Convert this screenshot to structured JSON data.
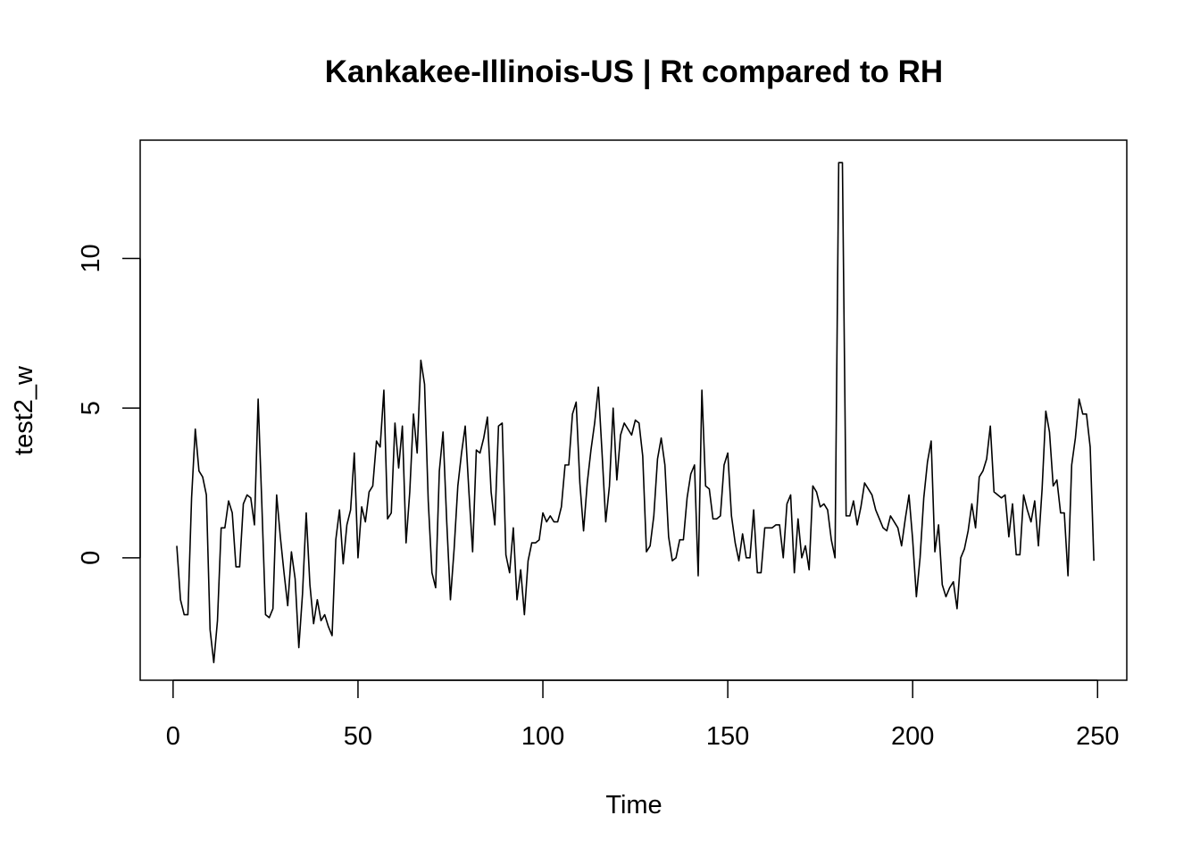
{
  "chart_data": {
    "type": "line",
    "title": "Kankakee-Illinois-US | Rt compared to RH",
    "xlabel": "Time",
    "ylabel": "test2_w",
    "xlim": [
      -8.9,
      257.9
    ],
    "ylim": [
      -4.09,
      13.95
    ],
    "x_ticks": [
      0,
      50,
      100,
      150,
      200,
      250
    ],
    "y_ticks": [
      0,
      5,
      10
    ],
    "grid": false,
    "legend": "none",
    "line_color": "#000000",
    "x_start": 1,
    "values": [
      0.4,
      -1.4,
      -1.9,
      -1.9,
      2.0,
      4.3,
      2.9,
      2.7,
      2.1,
      -2.4,
      -3.5,
      -2.1,
      1.0,
      1.0,
      1.9,
      1.5,
      -0.3,
      -0.3,
      1.8,
      2.1,
      2.0,
      1.1,
      5.3,
      1.8,
      -1.9,
      -2.0,
      -1.7,
      2.1,
      0.7,
      -0.5,
      -1.6,
      0.2,
      -0.7,
      -3.0,
      -1.2,
      1.5,
      -0.9,
      -2.2,
      -1.4,
      -2.1,
      -1.9,
      -2.3,
      -2.6,
      0.6,
      1.6,
      -0.2,
      1.1,
      1.6,
      3.5,
      0.0,
      1.7,
      1.2,
      2.2,
      2.4,
      3.9,
      3.7,
      5.6,
      1.3,
      1.5,
      4.5,
      3.0,
      4.4,
      0.5,
      2.2,
      4.8,
      3.5,
      6.6,
      5.8,
      1.9,
      -0.5,
      -1.0,
      2.9,
      4.2,
      1.2,
      -1.4,
      0.3,
      2.4,
      3.5,
      4.4,
      2.2,
      0.2,
      3.6,
      3.5,
      4.0,
      4.7,
      2.2,
      1.1,
      4.4,
      4.5,
      0.1,
      -0.5,
      1.0,
      -1.4,
      -0.4,
      -1.9,
      -0.1,
      0.5,
      0.5,
      0.6,
      1.5,
      1.2,
      1.4,
      1.2,
      1.2,
      1.7,
      3.1,
      3.1,
      4.8,
      5.2,
      2.5,
      0.9,
      2.5,
      3.6,
      4.5,
      5.7,
      3.5,
      1.2,
      2.4,
      5.0,
      2.6,
      4.1,
      4.5,
      4.3,
      4.1,
      4.6,
      4.5,
      3.4,
      0.2,
      0.4,
      1.4,
      3.3,
      4.0,
      3.1,
      0.7,
      -0.1,
      0.0,
      0.6,
      0.6,
      2.0,
      2.8,
      3.1,
      -0.6,
      5.6,
      2.4,
      2.3,
      1.3,
      1.3,
      1.4,
      3.1,
      3.5,
      1.4,
      0.5,
      -0.1,
      0.8,
      0.0,
      0.0,
      1.6,
      -0.5,
      -0.5,
      1.0,
      1.0,
      1.0,
      1.1,
      1.1,
      0.0,
      1.8,
      2.1,
      -0.5,
      1.3,
      0.0,
      0.4,
      -0.4,
      2.4,
      2.2,
      1.7,
      1.8,
      1.6,
      0.6,
      0.0,
      13.2,
      13.2,
      1.4,
      1.4,
      1.9,
      1.1,
      1.7,
      2.5,
      2.3,
      2.1,
      1.6,
      1.3,
      1.0,
      0.9,
      1.4,
      1.2,
      1.0,
      0.4,
      1.3,
      2.1,
      0.6,
      -1.3,
      0.0,
      2.0,
      3.2,
      3.9,
      0.2,
      1.1,
      -0.9,
      -1.3,
      -1.0,
      -0.8,
      -1.7,
      0.0,
      0.3,
      0.9,
      1.8,
      1.0,
      2.7,
      2.9,
      3.3,
      4.4,
      2.2,
      2.1,
      2.0,
      2.1,
      0.7,
      1.8,
      0.1,
      0.1,
      2.1,
      1.6,
      1.2,
      1.9,
      0.4,
      2.3,
      4.9,
      4.2,
      2.4,
      2.6,
      1.5,
      1.5,
      -0.6,
      3.1,
      4.0,
      5.3,
      4.8,
      4.8,
      3.7,
      -0.1
    ]
  }
}
